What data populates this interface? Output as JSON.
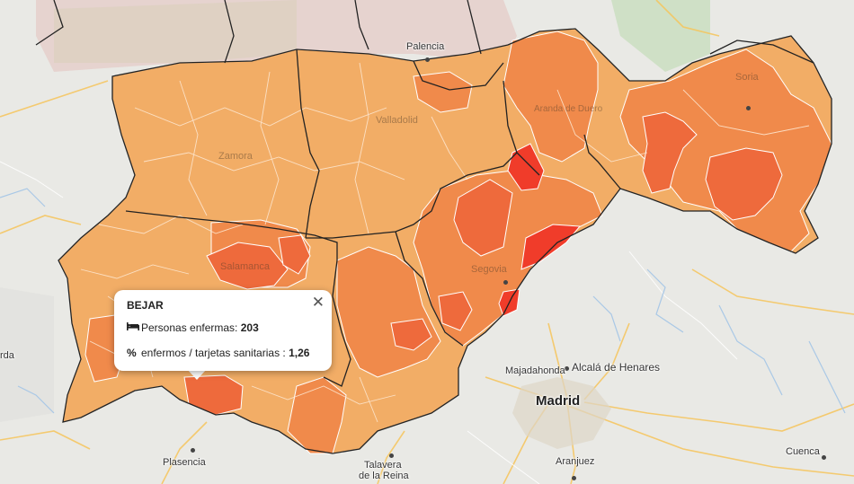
{
  "map": {
    "cities": {
      "palencia": "Palencia",
      "valladolid": "Valladolid",
      "zamora": "Zamora",
      "salamanca": "Salamanca",
      "segovia": "Segovia",
      "soria": "Soria",
      "aranda": "Aranda de Duero",
      "madrid": "Madrid",
      "majadahonda": "Majadahonda",
      "alcala": "Alcalá de Henares",
      "plasencia": "Plasencia",
      "talavera_1": "Talavera",
      "talavera_2": "de la Reina",
      "aranjuez": "Aranjuez",
      "cuenca": "Cuenca",
      "guarda": "rda"
    },
    "colors": {
      "background": "#e8e8e4",
      "light": "#f3ad67",
      "medium": "#f08a4b",
      "strong": "#ee6a3c",
      "max": "#f03c2a",
      "border": "#222222"
    }
  },
  "popup": {
    "title": "BEJAR",
    "close_symbol": "✕",
    "row1_icon": "bed-icon",
    "row1_label": "Personas enfermas:",
    "row1_value": "203",
    "row2_icon": "percent-icon",
    "row2_label": "enfermos / tarjetas sanitarias :",
    "row2_value": "1,26"
  }
}
